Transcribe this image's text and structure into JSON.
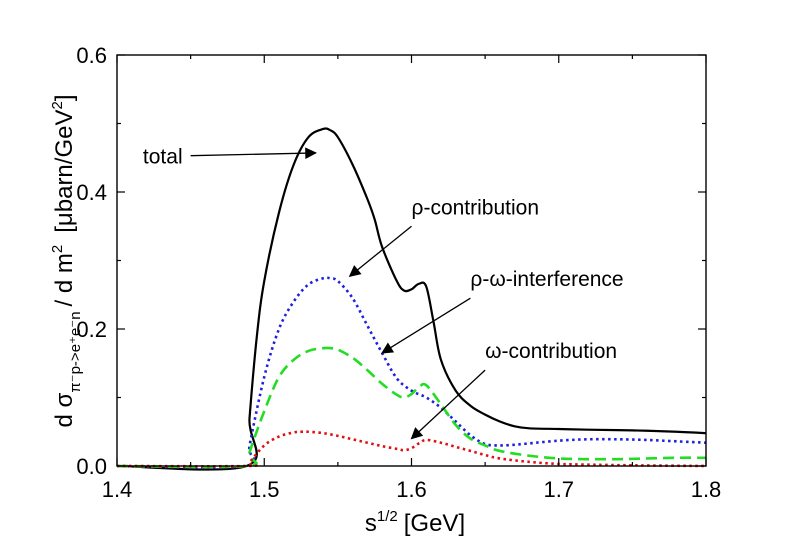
{
  "chart_data": {
    "type": "line",
    "title": "",
    "xlabel": {
      "base": "s",
      "sup": "1/2",
      "unit": "[GeV]"
    },
    "ylabel": {
      "prefix": "d σ",
      "subscript": "π⁻p->e⁺e⁻n",
      "middle": "/ d m",
      "middle_sup": "2",
      "unit_prefix": "[μbarn/GeV",
      "unit_sup": "2",
      "unit_suffix": "]"
    },
    "xlim": [
      1.4,
      1.8
    ],
    "ylim": [
      0.0,
      0.6
    ],
    "xticks": [
      1.4,
      1.5,
      1.6,
      1.7,
      1.8
    ],
    "xtick_labels": [
      "1.4",
      "1.5",
      "1.6",
      "1.7",
      "1.8"
    ],
    "yticks": [
      0.0,
      0.2,
      0.4,
      0.6
    ],
    "ytick_labels": [
      "0.0",
      "0.2",
      "0.4",
      "0.6"
    ],
    "series": [
      {
        "name": "total",
        "color": "#000000",
        "style": "solid",
        "x": [
          1.4,
          1.488,
          1.49,
          1.495,
          1.5,
          1.51,
          1.52,
          1.53,
          1.54,
          1.545,
          1.55,
          1.56,
          1.57,
          1.575,
          1.58,
          1.59,
          1.595,
          1.6,
          1.605,
          1.61,
          1.615,
          1.62,
          1.63,
          1.64,
          1.65,
          1.66,
          1.67,
          1.68,
          1.7,
          1.72,
          1.75,
          1.78,
          1.8
        ],
        "y": [
          0.0,
          0.0,
          0.07,
          0.19,
          0.27,
          0.37,
          0.44,
          0.48,
          0.492,
          0.49,
          0.48,
          0.44,
          0.39,
          0.36,
          0.32,
          0.27,
          0.256,
          0.258,
          0.266,
          0.262,
          0.21,
          0.155,
          0.11,
          0.088,
          0.075,
          0.065,
          0.058,
          0.055,
          0.054,
          0.053,
          0.052,
          0.05,
          0.048
        ]
      },
      {
        "name": "ρ-contribution",
        "color": "#1f1fe0",
        "style": "dotted",
        "x": [
          1.4,
          1.488,
          1.49,
          1.5,
          1.51,
          1.52,
          1.53,
          1.54,
          1.545,
          1.55,
          1.56,
          1.57,
          1.58,
          1.59,
          1.6,
          1.61,
          1.62,
          1.63,
          1.64,
          1.65,
          1.66,
          1.67,
          1.68,
          1.7,
          1.72,
          1.74,
          1.76,
          1.78,
          1.8
        ],
        "y": [
          0.0,
          0.0,
          0.03,
          0.13,
          0.2,
          0.24,
          0.265,
          0.274,
          0.274,
          0.27,
          0.245,
          0.205,
          0.165,
          0.128,
          0.11,
          0.1,
          0.085,
          0.065,
          0.045,
          0.032,
          0.03,
          0.031,
          0.033,
          0.037,
          0.039,
          0.039,
          0.038,
          0.036,
          0.034
        ]
      },
      {
        "name": "ρ-ω-interference",
        "color": "#22dd22",
        "style": "dashed",
        "x": [
          1.4,
          1.488,
          1.49,
          1.5,
          1.51,
          1.52,
          1.53,
          1.54,
          1.545,
          1.55,
          1.56,
          1.57,
          1.58,
          1.59,
          1.595,
          1.6,
          1.605,
          1.61,
          1.62,
          1.63,
          1.64,
          1.65,
          1.66,
          1.68,
          1.7,
          1.72,
          1.74,
          1.76,
          1.78,
          1.8
        ],
        "y": [
          0.0,
          0.0,
          0.02,
          0.08,
          0.13,
          0.155,
          0.168,
          0.172,
          0.172,
          0.17,
          0.158,
          0.14,
          0.12,
          0.104,
          0.1,
          0.105,
          0.115,
          0.118,
          0.09,
          0.06,
          0.04,
          0.03,
          0.022,
          0.015,
          0.011,
          0.01,
          0.01,
          0.011,
          0.012,
          0.012
        ]
      },
      {
        "name": "ω-contribution",
        "color": "#e01010",
        "style": "dotted",
        "x": [
          1.4,
          1.488,
          1.49,
          1.5,
          1.51,
          1.52,
          1.525,
          1.53,
          1.54,
          1.55,
          1.56,
          1.57,
          1.58,
          1.59,
          1.595,
          1.6,
          1.605,
          1.61,
          1.62,
          1.63,
          1.64,
          1.65,
          1.66,
          1.68,
          1.7,
          1.72,
          1.75,
          1.8
        ],
        "y": [
          0.0,
          0.0,
          0.005,
          0.03,
          0.043,
          0.049,
          0.05,
          0.05,
          0.048,
          0.044,
          0.039,
          0.034,
          0.029,
          0.025,
          0.023,
          0.026,
          0.033,
          0.038,
          0.034,
          0.028,
          0.022,
          0.016,
          0.011,
          0.006,
          0.003,
          0.002,
          0.001,
          0.0
        ]
      }
    ],
    "annotations": [
      {
        "text": "total",
        "from": [
          1.45,
          0.453
        ],
        "to": [
          1.535,
          0.457
        ]
      },
      {
        "text": "ρ-contribution",
        "from": [
          1.6,
          0.35
        ],
        "to": [
          1.558,
          0.277
        ]
      },
      {
        "text": "ρ-ω-interference",
        "from": [
          1.64,
          0.245
        ],
        "to": [
          1.58,
          0.165
        ]
      },
      {
        "text": "ω-contribution",
        "from": [
          1.65,
          0.14
        ],
        "to": [
          1.6,
          0.04
        ]
      }
    ]
  }
}
